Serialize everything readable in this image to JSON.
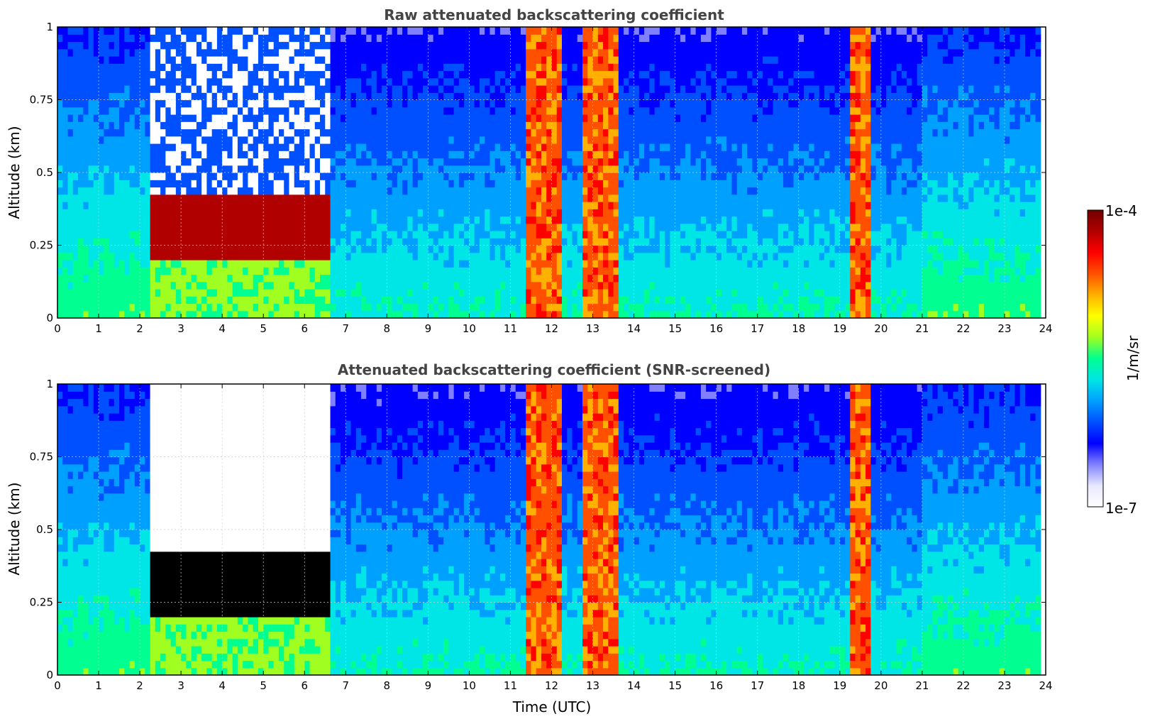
{
  "colors": {
    "colormap": [
      "#ffffff",
      "#e8e8ff",
      "#8080ff",
      "#0000ff",
      "#0050ff",
      "#00a0ff",
      "#00e6e6",
      "#00ff90",
      "#a0ff20",
      "#ffff00",
      "#ffb000",
      "#ff5000",
      "#ff0000",
      "#b00000",
      "#700000"
    ],
    "saturated": "#000000",
    "grid": "#cccccc"
  },
  "colorbar": {
    "label": "1/m/sr",
    "max_label": "1e-4",
    "min_label": "1e-7"
  },
  "chart_data": [
    {
      "type": "heatmap",
      "title": "Raw attenuated backscattering coefficient",
      "xlabel": "",
      "ylabel": "Altitude (km)",
      "xlim": [
        0,
        24
      ],
      "ylim": [
        0,
        1
      ],
      "x_ticks": [
        0,
        1,
        2,
        3,
        4,
        5,
        6,
        7,
        8,
        9,
        10,
        11,
        12,
        13,
        14,
        15,
        16,
        17,
        18,
        19,
        20,
        21,
        22,
        23,
        24
      ],
      "y_ticks": [
        0,
        0.25,
        0.5,
        0.75,
        1
      ],
      "y_tick_labels": [
        "0",
        "0.25",
        "0.5",
        "0.75",
        "1"
      ],
      "color_scale": "log",
      "color_range": [
        1e-07,
        0.0001
      ],
      "grid": true,
      "data_end_time": 23.8,
      "cloud_layers": [
        {
          "time_start": 2.3,
          "time_end": 6.6,
          "altitude_base": 0.2,
          "altitude_top": 0.42
        },
        {
          "time_start": 11.4,
          "time_end": 12.3,
          "altitude_base": 0.0,
          "altitude_top": 1.0
        },
        {
          "time_start": 12.8,
          "time_end": 13.6,
          "altitude_base": 0.0,
          "altitude_top": 1.0
        },
        {
          "time_start": 19.3,
          "time_end": 19.7,
          "altitude_base": 0.0,
          "altitude_top": 1.0
        }
      ]
    },
    {
      "type": "heatmap",
      "title": "Attenuated backscattering coefficient (SNR-screened)",
      "xlabel": "Time (UTC)",
      "ylabel": "Altitude (km)",
      "xlim": [
        0,
        24
      ],
      "ylim": [
        0,
        1
      ],
      "x_ticks": [
        0,
        1,
        2,
        3,
        4,
        5,
        6,
        7,
        8,
        9,
        10,
        11,
        12,
        13,
        14,
        15,
        16,
        17,
        18,
        19,
        20,
        21,
        22,
        23,
        24
      ],
      "y_ticks": [
        0,
        0.25,
        0.5,
        0.75,
        1
      ],
      "y_tick_labels": [
        "0",
        "0.25",
        "0.5",
        "0.75",
        "1"
      ],
      "color_scale": "log",
      "color_range": [
        1e-07,
        0.0001
      ],
      "grid": true,
      "data_end_time": 23.8,
      "cloud_layers": [
        {
          "time_start": 2.3,
          "time_end": 6.6,
          "altitude_base": 0.2,
          "altitude_top": 0.42
        },
        {
          "time_start": 11.4,
          "time_end": 12.3,
          "altitude_base": 0.0,
          "altitude_top": 1.0
        },
        {
          "time_start": 12.8,
          "time_end": 13.6,
          "altitude_base": 0.0,
          "altitude_top": 1.0
        },
        {
          "time_start": 19.3,
          "time_end": 19.7,
          "altitude_base": 0.0,
          "altitude_top": 1.0
        }
      ]
    }
  ]
}
